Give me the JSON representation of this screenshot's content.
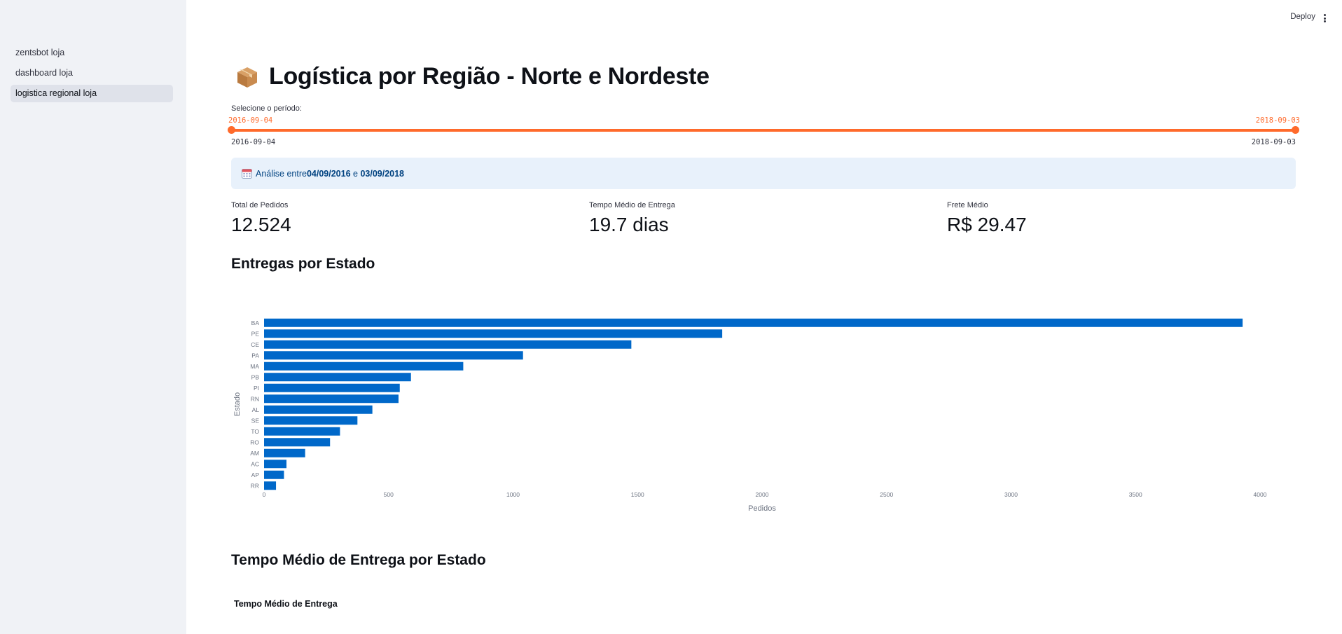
{
  "sidebar": {
    "items": [
      {
        "label": "zentsbot loja"
      },
      {
        "label": "dashboard loja"
      },
      {
        "label": "logistica regional loja"
      }
    ]
  },
  "topbar": {
    "deploy_label": "Deploy"
  },
  "page": {
    "title": "Logística por Região - Norte e Nordeste",
    "title_icon": "package-icon"
  },
  "slider": {
    "label": "Selecione o período:",
    "start_value": "2016-09-04",
    "end_value": "2018-09-03",
    "min_label": "2016-09-04",
    "max_label": "2018-09-03",
    "accent": "#ff6a2b"
  },
  "info": {
    "prefix": "Análise entre ",
    "start": "04/09/2016",
    "joiner": " e ",
    "end": "03/09/2018"
  },
  "metrics": [
    {
      "label": "Total de Pedidos",
      "value": "12.524"
    },
    {
      "label": "Tempo Médio de Entrega",
      "value": "19.7 dias"
    },
    {
      "label": "Frete Médio",
      "value": "R$ 29.47"
    }
  ],
  "sections": {
    "entregas_title": "Entregas por Estado",
    "tempo_title": "Tempo Médio de Entrega por Estado",
    "tempo_subtitle": "Tempo Médio de Entrega"
  },
  "chart_data": {
    "type": "bar",
    "orientation": "horizontal",
    "categories": [
      "BA",
      "PE",
      "CE",
      "PA",
      "MA",
      "PB",
      "PI",
      "RN",
      "AL",
      "SE",
      "TO",
      "RO",
      "AM",
      "AC",
      "AP",
      "RR"
    ],
    "values": [
      3930,
      1840,
      1475,
      1040,
      800,
      590,
      545,
      540,
      435,
      375,
      305,
      265,
      165,
      90,
      80,
      48
    ],
    "xlabel": "Pedidos",
    "ylabel": "Estado",
    "xlim": [
      0,
      4000
    ],
    "xticks": [
      0,
      500,
      1000,
      1500,
      2000,
      2500,
      3000,
      3500,
      4000
    ],
    "bar_color": "#0068c9"
  }
}
